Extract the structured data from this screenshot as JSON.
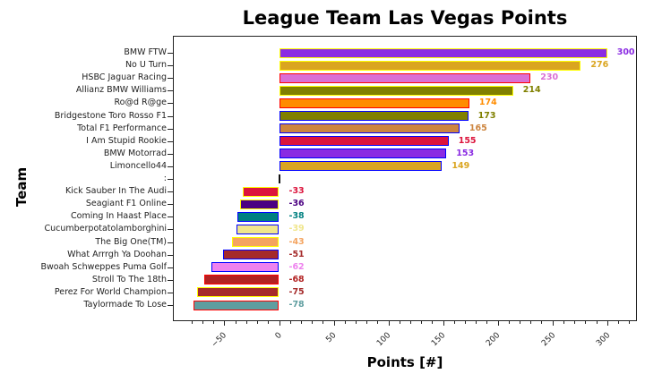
{
  "chart_data": {
    "type": "bar",
    "orientation": "horizontal",
    "title": "League Team Las Vegas Points",
    "xlabel": "Points [#]",
    "ylabel": "Team",
    "xlim": [
      -88,
      327
    ],
    "xticks": [
      -50,
      0,
      50,
      100,
      150,
      200,
      250,
      300
    ],
    "grid": false,
    "legend": null,
    "categories": [
      "BMW FTW",
      "No U Turn",
      "HSBC Jaguar Racing",
      "Allianz BMW Williams",
      "Ro@d R@ge",
      "Bridgestone Toro Rosso F1",
      "Total F1 Performance",
      "I Am Stupid Rookie",
      "BMW Motorrad",
      "Limoncello44",
      ":",
      "Kick Sauber In The Audi",
      "Seagiant F1 Online",
      "Coming In Haast Place",
      "Cucumberpotatolamborghini",
      "The Big One(TM)",
      "What Arrrgh Ya Doohan",
      "Bwoah Schweppes Puma Golf",
      "Stroll To The 18th",
      "Perez For World Champion",
      "Taylormade To Lose"
    ],
    "values": [
      300,
      276,
      230,
      214,
      174,
      173,
      165,
      155,
      153,
      149,
      0,
      -33,
      -36,
      -38,
      -39,
      -43,
      -51,
      -62,
      -68,
      -75,
      -78
    ],
    "value_labels": [
      "300",
      "276",
      "230",
      "214",
      "174",
      "173",
      "165",
      "155",
      "153",
      "149",
      "",
      "-33",
      "-36",
      "-38",
      "-39",
      "-43",
      "-51",
      "-62",
      "-68",
      "-75",
      "-78"
    ],
    "fill_colors": [
      "#8a2be2",
      "#daa520",
      "#da70d6",
      "#808000",
      "#ff8c00",
      "#808000",
      "#cd853f",
      "#dc143c",
      "#8a2be2",
      "#daa520",
      "#000000",
      "#dc143c",
      "#4b0082",
      "#008080",
      "#f0e68c",
      "#f4a460",
      "#a52a2a",
      "#ee82ee",
      "#b22222",
      "#a52a2a",
      "#5f9ea0"
    ],
    "edge_colors": [
      "#ffff00",
      "#ffff00",
      "#ff0000",
      "#ffff00",
      "#ff0000",
      "#0000ff",
      "#0000ff",
      "#0000ff",
      "#0000ff",
      "#0000ff",
      "#000000",
      "#ffff00",
      "#ffff00",
      "#0000ff",
      "#0000ff",
      "#ffff00",
      "#0000ff",
      "#0000ff",
      "#ff0000",
      "#ffff00",
      "#ff0000"
    ]
  },
  "labels": {
    "title": "League Team Las Vegas Points",
    "xlabel": "Points [#]",
    "ylabel": "Team"
  }
}
